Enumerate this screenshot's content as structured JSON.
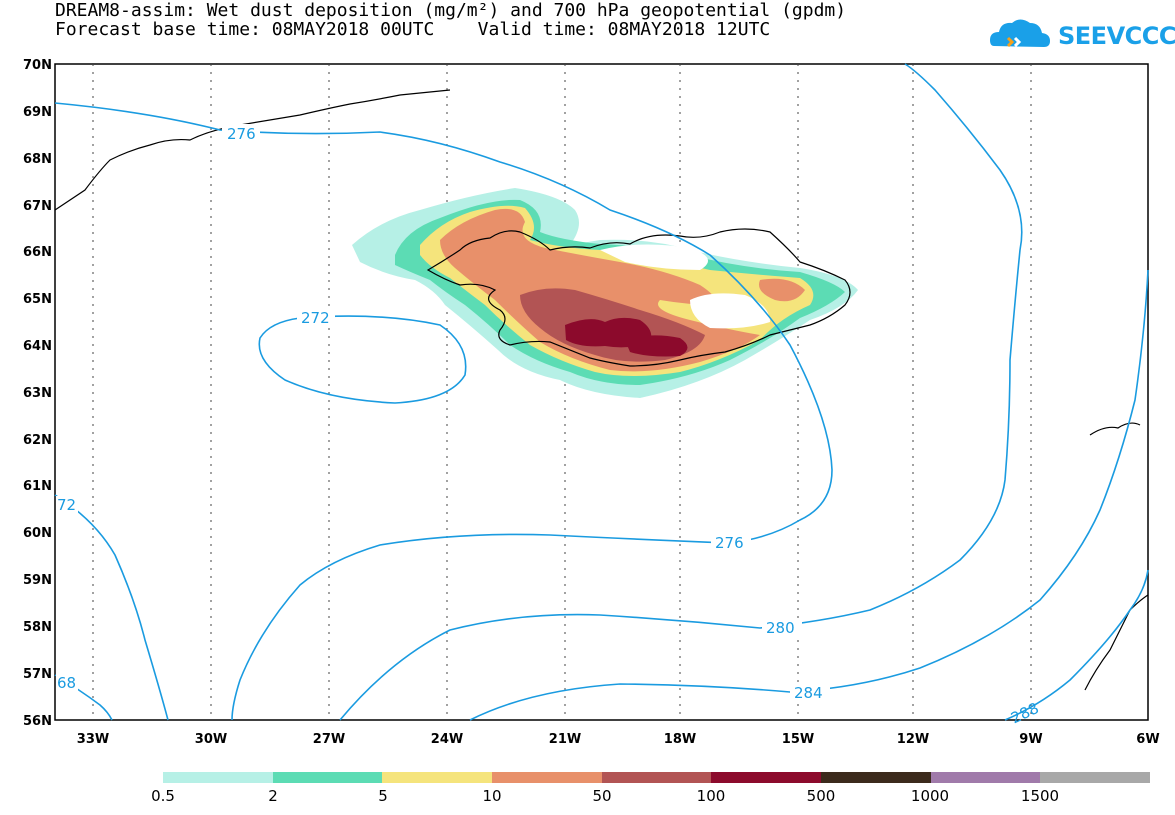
{
  "header": {
    "title_line1": "DREAM8-assim: Wet dust deposition (mg/m²) and 700 hPa geopotential (gpdm)",
    "title_line2": "Forecast base time: 08MAY2018 00UTC    Valid time: 08MAY2018 12UTC"
  },
  "logo": {
    "text": "SEEVCCC",
    "icon": "cloud-logo-icon",
    "color": "#1aa0e8"
  },
  "map": {
    "lat_labels": [
      "70N",
      "69N",
      "68N",
      "67N",
      "66N",
      "65N",
      "64N",
      "63N",
      "62N",
      "61N",
      "60N",
      "59N",
      "58N",
      "57N",
      "56N"
    ],
    "lon_labels": [
      "33W",
      "30W",
      "27W",
      "24W",
      "21W",
      "18W",
      "15W",
      "12W",
      "9W",
      "6W"
    ],
    "contour_color": "#1a9be0",
    "contour_labels": [
      "276",
      "272",
      "72",
      "276",
      "280",
      "284",
      "68",
      "288"
    ]
  },
  "legend": {
    "colors": [
      "#b6f0e6",
      "#5cdcb4",
      "#f5e47c",
      "#e8906a",
      "#b25454",
      "#8c0a2c",
      "#3c2a1c",
      "#a07aaa",
      "#a8a8a8"
    ],
    "labels": [
      "0.5",
      "2",
      "5",
      "10",
      "50",
      "100",
      "500",
      "1000",
      "1500"
    ]
  }
}
